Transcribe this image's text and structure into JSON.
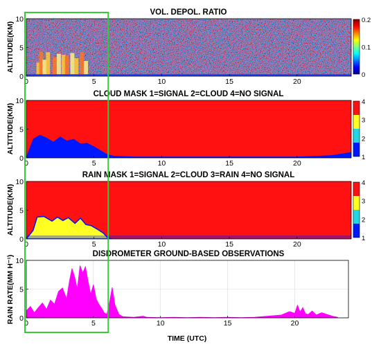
{
  "highlight": {
    "x_range": [
      0,
      6
    ],
    "color": "#33cc33"
  },
  "time_label": "TIME (UTC)",
  "chart_data": [
    {
      "type": "heatmap",
      "title": "VOL. DEPOL. RATIO",
      "ylabel": "ALTITUDE(KM)",
      "xlim": [
        0,
        24
      ],
      "ylim": [
        0,
        10
      ],
      "xticks": [
        "0",
        "5",
        "10",
        "15",
        "20"
      ],
      "yticks": [
        "0",
        "5",
        "10"
      ],
      "colorbar": {
        "ticks": [
          "0",
          "0.1",
          "0.2"
        ],
        "range": [
          0,
          0.2
        ],
        "colormap": "jet"
      },
      "features": [
        {
          "label": "rain shafts (high depol.)",
          "x_range": [
            0.8,
            4.6
          ],
          "top_km": 4.3
        },
        {
          "label": "background noise above",
          "x_range": [
            0,
            24
          ],
          "value": "random 0-0.2"
        }
      ]
    },
    {
      "type": "heatmap",
      "title": "CLOUD MASK 1=SIGNAL 2=CLOUD 4=NO SIGNAL",
      "ylabel": "ALTITUDE(KM)",
      "xlim": [
        0,
        24
      ],
      "ylim": [
        0,
        10
      ],
      "xticks": [
        "0",
        "5",
        "10",
        "15",
        "20"
      ],
      "yticks": [
        "0",
        "5",
        "10"
      ],
      "colorbar": {
        "ticks": [
          "1",
          "2",
          "3",
          "4"
        ],
        "colors": [
          "#0018ff",
          "#22d6e8",
          "#ffff22",
          "#ff1111"
        ]
      },
      "signal_top_km": [
        [
          0,
          0.2
        ],
        [
          0.5,
          3.3
        ],
        [
          1.0,
          4.0
        ],
        [
          1.5,
          3.5
        ],
        [
          2.0,
          2.8
        ],
        [
          2.5,
          3.7
        ],
        [
          3.0,
          3.0
        ],
        [
          3.5,
          3.3
        ],
        [
          4.0,
          2.5
        ],
        [
          4.5,
          2.6
        ],
        [
          5.0,
          2.0
        ],
        [
          5.5,
          1.3
        ],
        [
          6.0,
          0.6
        ],
        [
          6.5,
          0.35
        ],
        [
          8.0,
          0.2
        ],
        [
          20.0,
          0.2
        ],
        [
          22.5,
          0.45
        ],
        [
          24.0,
          1.0
        ]
      ]
    },
    {
      "type": "heatmap",
      "title": "RAIN MASK 1=SIGNAL 2=CLOUD 3=RAIN 4=NO SIGNAL",
      "ylabel": "ALTITUDE(KM)",
      "xlim": [
        0,
        24
      ],
      "ylim": [
        0,
        10
      ],
      "xticks": [
        "0",
        "5",
        "10",
        "15",
        "20"
      ],
      "yticks": [
        "0",
        "5",
        "10"
      ],
      "colorbar": {
        "ticks": [
          "1",
          "2",
          "3",
          "4"
        ],
        "colors": [
          "#0018ff",
          "#22d6e8",
          "#ffff22",
          "#ff1111"
        ]
      },
      "rain_top_km": [
        [
          0.0,
          0.0
        ],
        [
          0.5,
          1.5
        ],
        [
          0.8,
          3.8
        ],
        [
          1.3,
          3.9
        ],
        [
          1.9,
          3.1
        ],
        [
          2.3,
          3.8
        ],
        [
          2.7,
          3.2
        ],
        [
          3.1,
          3.7
        ],
        [
          3.6,
          2.7
        ],
        [
          4.0,
          3.6
        ],
        [
          4.4,
          2.5
        ],
        [
          4.8,
          2.3
        ],
        [
          5.3,
          1.6
        ],
        [
          5.7,
          1.0
        ],
        [
          6.0,
          0.2
        ],
        [
          6.3,
          0.0
        ]
      ]
    },
    {
      "type": "area",
      "title": "DISDROMETER GROUND-BASED OBSERVATIONS",
      "xlabel": "TIME (UTC)",
      "ylabel": "RAIN RATE(MM H⁻¹)",
      "xlim": [
        0,
        24
      ],
      "ylim": [
        0,
        10
      ],
      "xticks": [
        "0",
        "5",
        "10",
        "15",
        "20"
      ],
      "yticks": [
        "0",
        "5",
        "10"
      ],
      "grid": true,
      "color": "#ff00ff",
      "x": [
        0.0,
        0.3,
        0.6,
        0.9,
        1.2,
        1.5,
        1.8,
        2.1,
        2.4,
        2.7,
        3.0,
        3.2,
        3.4,
        3.6,
        3.8,
        4.0,
        4.2,
        4.4,
        4.6,
        4.8,
        5.0,
        5.2,
        5.4,
        5.6,
        5.8,
        6.0,
        6.2,
        6.4,
        6.6,
        6.9,
        7.2,
        8.0,
        8.7,
        9.0,
        10.0,
        11.0,
        12.0,
        13.0,
        14.0,
        15.0,
        16.0,
        17.0,
        18.0,
        19.0,
        19.6,
        20.0,
        20.2,
        20.4,
        20.6,
        20.8,
        21.0,
        21.3,
        21.6,
        22.0,
        22.4,
        22.8,
        23.2
      ],
      "y": [
        1.2,
        2.0,
        0.9,
        1.8,
        2.6,
        1.5,
        3.1,
        2.4,
        4.6,
        5.2,
        3.3,
        6.2,
        8.6,
        7.1,
        5.0,
        9.1,
        7.8,
        8.9,
        6.4,
        4.1,
        5.8,
        3.3,
        2.4,
        1.7,
        0.9,
        0.6,
        2.7,
        5.3,
        2.3,
        0.6,
        0.2,
        0.1,
        0.3,
        0.1,
        0.05,
        0.1,
        0.05,
        0.1,
        0.05,
        0.1,
        0.05,
        0.1,
        0.3,
        0.5,
        1.1,
        0.8,
        2.2,
        1.0,
        1.8,
        0.7,
        0.6,
        1.2,
        0.5,
        0.9,
        0.6,
        0.3,
        0.1
      ]
    }
  ]
}
